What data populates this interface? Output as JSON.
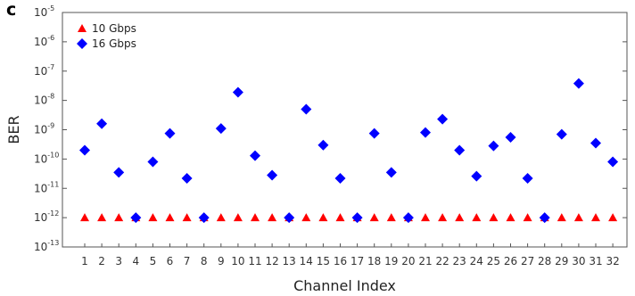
{
  "panel_label": "c",
  "chart_data": {
    "type": "scatter",
    "title": "",
    "xlabel": "Channel Index",
    "ylabel": "BER",
    "x_categories": [
      1,
      2,
      3,
      4,
      5,
      6,
      7,
      8,
      9,
      10,
      11,
      12,
      13,
      14,
      15,
      16,
      17,
      18,
      19,
      20,
      21,
      22,
      23,
      24,
      25,
      26,
      27,
      28,
      29,
      30,
      31,
      32
    ],
    "y_scale": "log",
    "ylim": [
      1e-13,
      1e-05
    ],
    "y_ticks": [
      {
        "base": "10",
        "exp": "-13",
        "value": 1e-13
      },
      {
        "base": "10",
        "exp": "-12",
        "value": 1e-12
      },
      {
        "base": "10",
        "exp": "-11",
        "value": 1e-11
      },
      {
        "base": "10",
        "exp": "-10",
        "value": 1e-10
      },
      {
        "base": "10",
        "exp": "-9",
        "value": 1e-09
      },
      {
        "base": "10",
        "exp": "-8",
        "value": 1e-08
      },
      {
        "base": "10",
        "exp": "-7",
        "value": 1e-07
      },
      {
        "base": "10",
        "exp": "-6",
        "value": 1e-06
      },
      {
        "base": "10",
        "exp": "-5",
        "value": 1e-05
      }
    ],
    "legend_position": "top-left",
    "series": [
      {
        "name": "10 Gbps",
        "marker": "triangle",
        "color": "#ff0000",
        "values": [
          1e-12,
          1e-12,
          1e-12,
          1e-12,
          1e-12,
          1e-12,
          1e-12,
          1e-12,
          1e-12,
          1e-12,
          1e-12,
          1e-12,
          1e-12,
          1e-12,
          1e-12,
          1e-12,
          1e-12,
          1e-12,
          1e-12,
          1e-12,
          1e-12,
          1e-12,
          1e-12,
          1e-12,
          1e-12,
          1e-12,
          1e-12,
          1e-12,
          1e-12,
          1e-12,
          1e-12,
          1e-12
        ]
      },
      {
        "name": "16 Gbps",
        "marker": "diamond",
        "color": "#0000ff",
        "values": [
          2e-10,
          1.6e-09,
          3.5e-11,
          1e-12,
          8e-11,
          7.5e-10,
          2.2e-11,
          1e-12,
          1.1e-09,
          1.9e-08,
          1.3e-10,
          2.8e-11,
          1e-12,
          5e-09,
          3e-10,
          2.2e-11,
          1e-12,
          7.5e-10,
          3.5e-11,
          1e-12,
          8e-10,
          2.3e-09,
          2e-10,
          2.6e-11,
          2.8e-10,
          5.5e-10,
          2.2e-11,
          1e-12,
          7e-10,
          3.8e-08,
          3.5e-10,
          8e-11
        ]
      }
    ]
  }
}
